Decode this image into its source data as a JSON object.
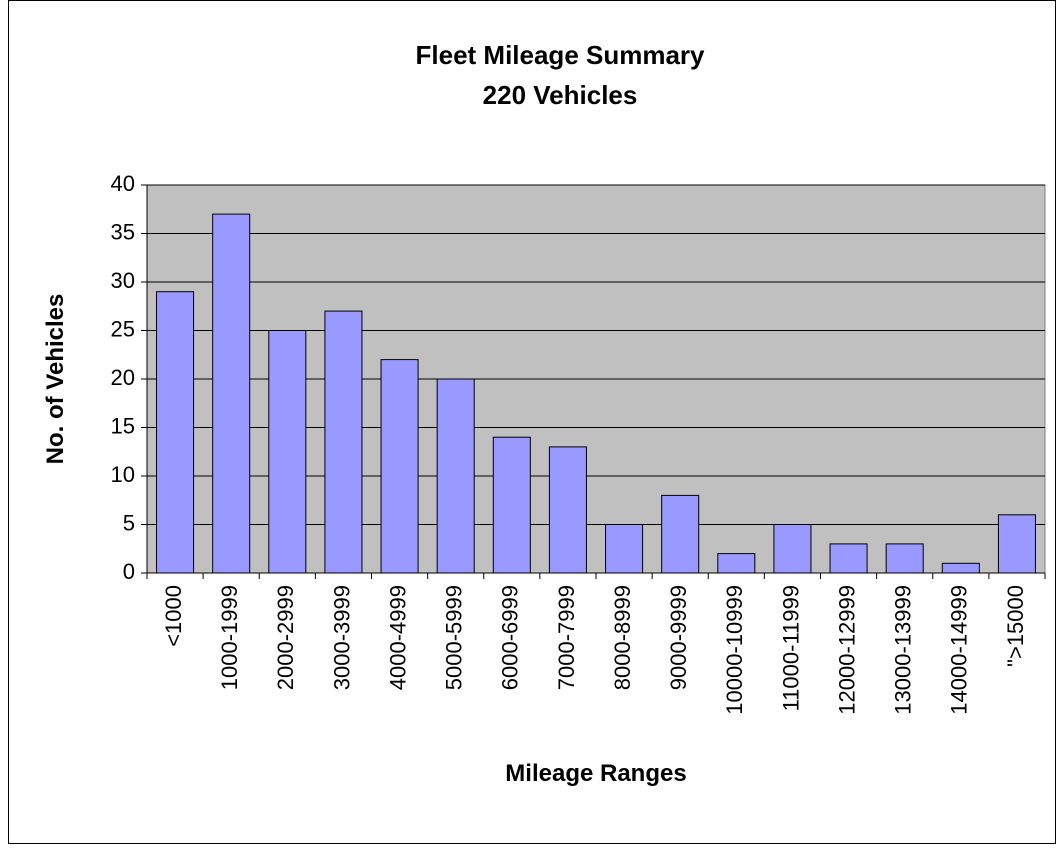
{
  "chart_data": {
    "type": "bar",
    "title": "Fleet Mileage Summary",
    "subtitle": "220 Vehicles",
    "x_label": "Mileage Ranges",
    "y_label": "No. of Vehicles",
    "categories": [
      "<1000",
      "1000-1999",
      "2000-2999",
      "3000-3999",
      "4000-4999",
      "5000-5999",
      "6000-6999",
      "7000-7999",
      "8000-8999",
      "9000-9999",
      "10000-10999",
      "11000-11999",
      "12000-12999",
      "13000-13999",
      "14000-14999",
      "\">15000"
    ],
    "values": [
      29,
      37,
      25,
      27,
      22,
      20,
      14,
      13,
      5,
      8,
      2,
      5,
      3,
      3,
      1,
      6
    ],
    "color": "#9999ff",
    "ylim": [
      0,
      40
    ],
    "yticks": [
      0,
      5,
      10,
      15,
      20,
      25,
      30,
      35,
      40
    ],
    "grid": true
  }
}
